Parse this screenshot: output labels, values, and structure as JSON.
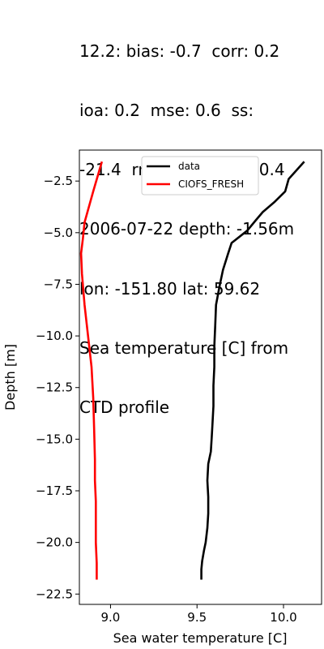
{
  "title_lines": [
    "12.2: bias: -0.7  corr: 0.2",
    "ioa: 0.2  mse: 0.6  ss:",
    "-21.4  rmse: 0.8  dist: 0.4",
    "2006-07-22 depth: -1.56m",
    "lon: -151.80 lat: 59.62",
    "Sea temperature [C] from",
    "CTD profile"
  ],
  "chart_data": {
    "type": "line",
    "xlabel": "Sea water temperature [C]",
    "ylabel": "Depth [m]",
    "xlim": [
      8.82,
      10.22
    ],
    "ylim": [
      -23.0,
      -1.0
    ],
    "xticks": [
      9.0,
      9.5,
      10.0
    ],
    "xtick_labels": [
      "9.0",
      "9.5",
      "10.0"
    ],
    "yticks": [
      -2.5,
      -5.0,
      -7.5,
      -10.0,
      -12.5,
      -15.0,
      -17.5,
      -20.0,
      -22.5
    ],
    "ytick_labels": [
      "−2.5",
      "−5.0",
      "−7.5",
      "−10.0",
      "−12.5",
      "−15.0",
      "−17.5",
      "−20.0",
      "−22.5"
    ],
    "grid": false,
    "legend_position": "top-center",
    "series": [
      {
        "name": "data",
        "color": "#000000",
        "x": [
          10.12,
          10.03,
          10.01,
          9.95,
          9.88,
          9.84,
          9.79,
          9.7,
          9.68,
          9.65,
          9.63,
          9.61,
          9.605,
          9.6,
          9.6,
          9.595,
          9.595,
          9.59,
          9.585,
          9.58,
          9.565,
          9.56,
          9.565,
          9.565,
          9.56,
          9.55,
          9.54,
          9.53,
          9.525,
          9.525
        ],
        "y": [
          -1.56,
          -2.4,
          -3.0,
          -3.5,
          -4.0,
          -4.4,
          -4.9,
          -5.5,
          -6.0,
          -6.8,
          -7.6,
          -8.5,
          -9.5,
          -10.5,
          -11.5,
          -12.4,
          -13.4,
          -14.2,
          -14.9,
          -15.6,
          -16.2,
          -17.0,
          -17.8,
          -18.6,
          -19.3,
          -20.0,
          -20.4,
          -20.9,
          -21.3,
          -21.8
        ]
      },
      {
        "name": "CIOFS_FRESH",
        "color": "#ff0000",
        "x": [
          8.95,
          8.9,
          8.85,
          8.84,
          8.83,
          8.835,
          8.85,
          8.87,
          8.89,
          8.9,
          8.905,
          8.91,
          8.91,
          8.915,
          8.915,
          8.915,
          8.92,
          8.92
        ],
        "y": [
          -1.56,
          -3.0,
          -4.5,
          -5.3,
          -6.0,
          -7.0,
          -8.5,
          -10.0,
          -11.5,
          -13.0,
          -14.5,
          -16.0,
          -17.0,
          -18.0,
          -19.0,
          -20.0,
          -21.0,
          -21.8
        ]
      }
    ]
  }
}
